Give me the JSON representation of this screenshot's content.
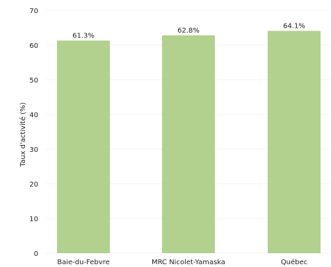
{
  "chart_data": {
    "type": "bar",
    "title": "",
    "xlabel": "",
    "ylabel": "Taux d'activité (%)",
    "categories": [
      "Baie-du-Febvre",
      "MRC Nicolet-Yamaska",
      "Québec"
    ],
    "values": [
      61.3,
      62.8,
      64.1
    ],
    "value_labels": [
      "61.3%",
      "62.8%",
      "64.1%"
    ],
    "ylim": [
      0,
      70
    ],
    "yticks": [
      0,
      10,
      20,
      30,
      40,
      50,
      60,
      70
    ],
    "grid": true,
    "legend": "none",
    "bar_color": "#b2d18e",
    "grid_color": "#f0f0f0"
  }
}
